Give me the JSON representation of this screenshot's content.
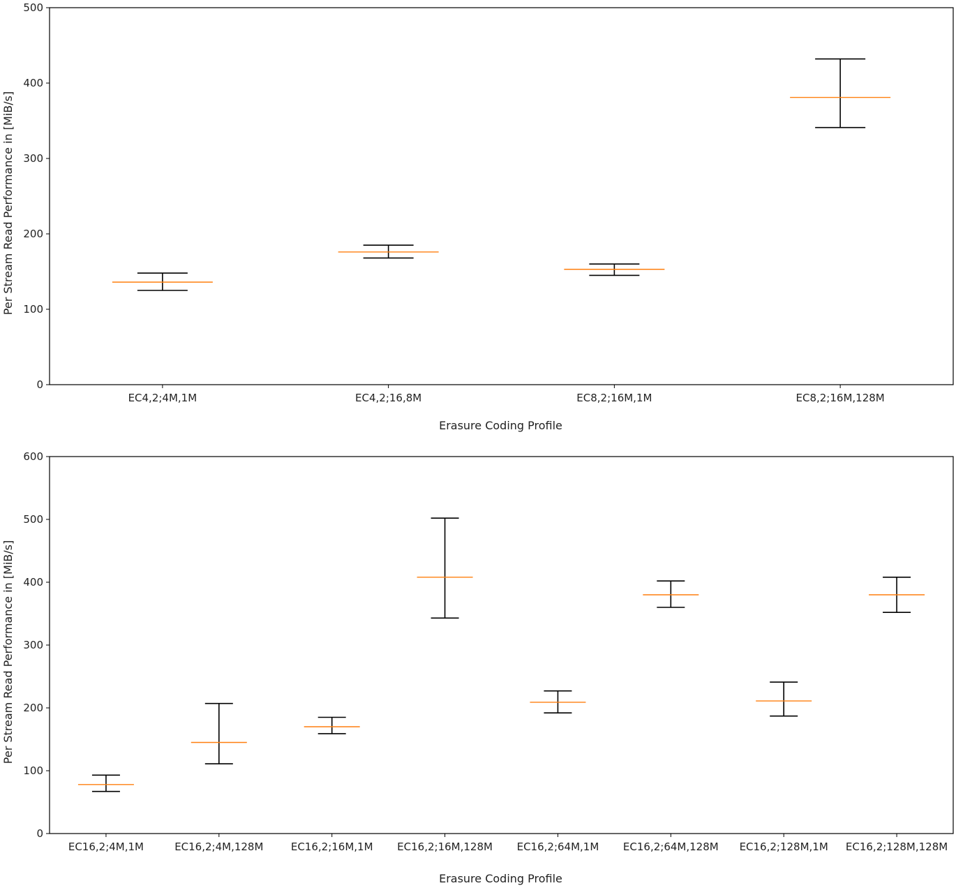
{
  "chart_data": [
    {
      "type": "errorbar",
      "title": "",
      "xlabel": "Erasure Coding Profile",
      "ylabel": "Per Stream Read Performance in [MiB/s]",
      "ylim": [
        0,
        500
      ],
      "yticks": [
        0,
        100,
        200,
        300,
        400,
        500
      ],
      "categories": [
        "EC4,2;4M,1M",
        "EC4,2;16,8M",
        "EC8,2;16M,1M",
        "EC8,2;16M,128M"
      ],
      "series": [
        {
          "name": "median",
          "values": [
            136,
            176,
            153,
            381
          ]
        },
        {
          "name": "lower",
          "values": [
            125,
            168,
            145,
            341
          ]
        },
        {
          "name": "upper",
          "values": [
            148,
            185,
            160,
            432
          ]
        }
      ],
      "median_color": "#ff7f0e",
      "whisker_color": "#000000"
    },
    {
      "type": "errorbar",
      "title": "",
      "xlabel": "Erasure Coding Profile",
      "ylabel": "Per Stream Read Performance in [MiB/s]",
      "ylim": [
        0,
        600
      ],
      "yticks": [
        0,
        100,
        200,
        300,
        400,
        500,
        600
      ],
      "categories": [
        "EC16,2;4M,1M",
        "EC16,2;4M,128M",
        "EC16,2;16M,1M",
        "EC16,2;16M,128M",
        "EC16,2;64M,1M",
        "EC16,2;64M,128M",
        "EC16,2;128M,1M",
        "EC16,2;128M,128M"
      ],
      "series": [
        {
          "name": "median",
          "values": [
            78,
            145,
            170,
            408,
            209,
            380,
            211,
            380
          ]
        },
        {
          "name": "lower",
          "values": [
            67,
            111,
            159,
            343,
            192,
            360,
            187,
            352
          ]
        },
        {
          "name": "upper",
          "values": [
            93,
            207,
            185,
            502,
            227,
            402,
            241,
            408
          ]
        }
      ],
      "median_color": "#ff7f0e",
      "whisker_color": "#000000"
    }
  ]
}
